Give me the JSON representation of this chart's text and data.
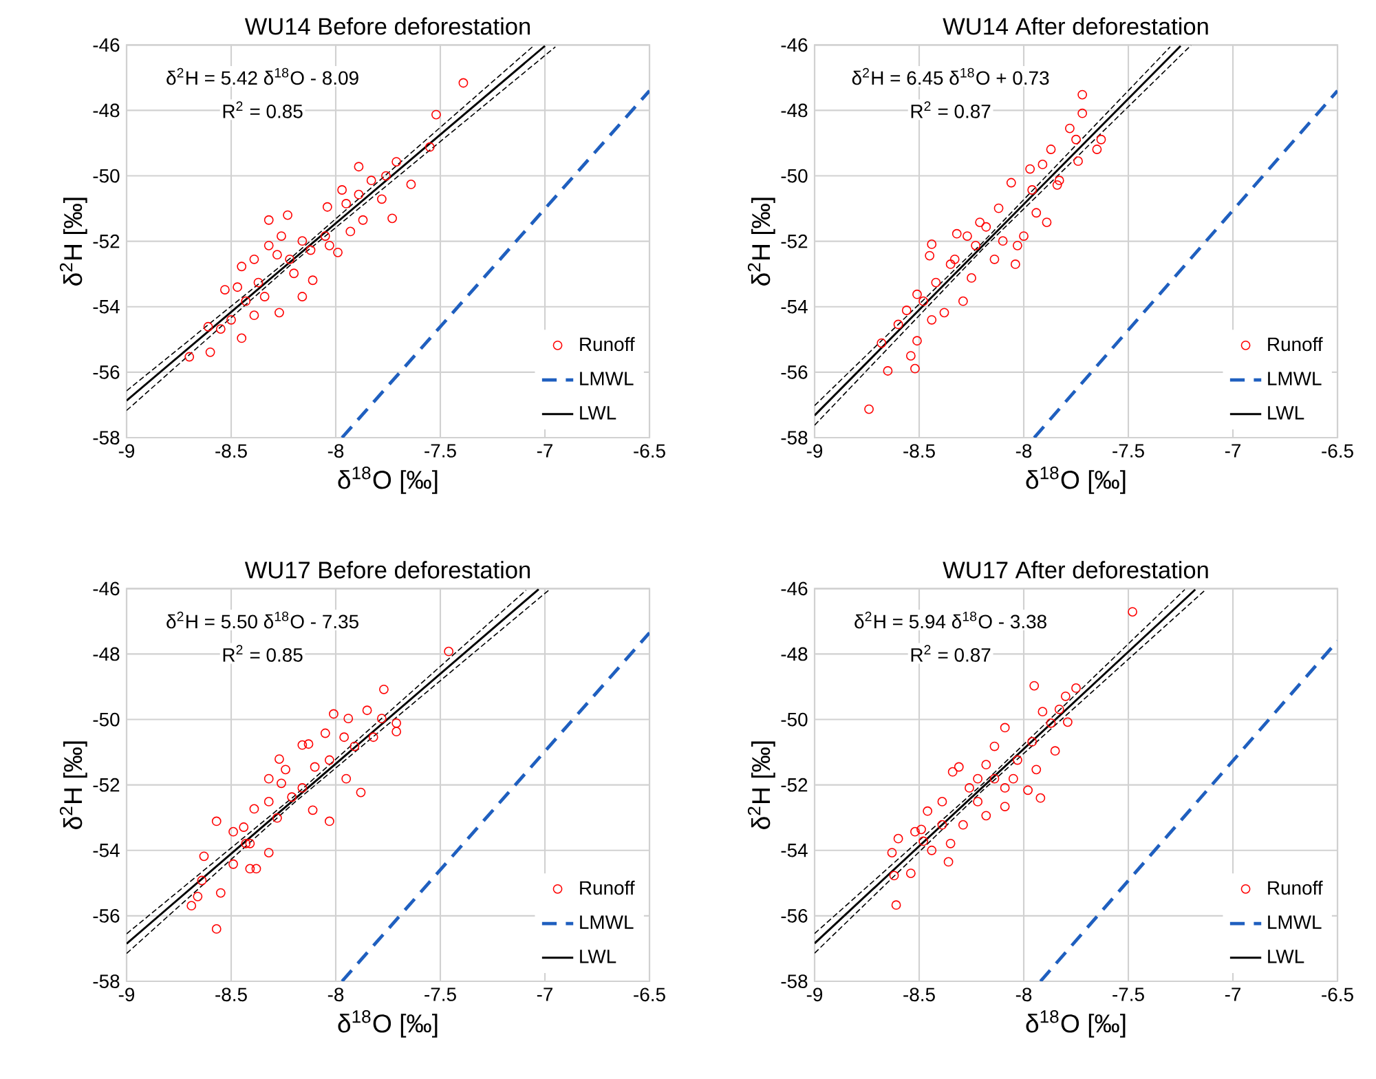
{
  "chart_data": [
    {
      "type": "scatter",
      "title": "WU14 Before deforestation",
      "xlabel": "δ$^{18}$O [‰]",
      "ylabel": "δ$^{2}$H [‰]",
      "annotations": [
        "δ$^{2}$H = 5.42 δ$^{18}$O - 8.09",
        "R$^{2}$ = 0.85"
      ],
      "xlim": [
        -9,
        -6.5
      ],
      "ylim": [
        -58,
        -46
      ],
      "xticks": [
        -9,
        -8.5,
        -8,
        -7.5,
        -7,
        -6.5
      ],
      "yticks": [
        -58,
        -56,
        -54,
        -52,
        -50,
        -48,
        -46
      ],
      "grid": true,
      "legend": "bottom right",
      "series": [
        {
          "name": "Runoff",
          "marker": "circle",
          "color": "#ff0000",
          "x": [
            -7.39,
            -7.52,
            -7.55,
            -7.64,
            -7.73,
            -7.71,
            -7.89,
            -7.97,
            -8.04,
            -8.23,
            -8.32,
            -8.32,
            -8.45,
            -8.53,
            -8.61,
            -8.7,
            -8.6,
            -8.45,
            -8.27,
            -8.16,
            -8.11,
            -7.99,
            -7.87,
            -7.78,
            -7.83,
            -7.95,
            -8.12,
            -8.22,
            -8.37,
            -8.43,
            -8.5,
            -8.39,
            -8.2,
            -8.05,
            -7.93,
            -7.76,
            -8.26,
            -8.39,
            -8.34,
            -8.03,
            -8.16,
            -8.47,
            -8.55,
            -7.89,
            -8.28
          ],
          "values": [
            -47.16,
            -48.13,
            -49.12,
            -50.26,
            -51.3,
            -49.57,
            -49.72,
            -50.43,
            -50.95,
            -51.2,
            -51.35,
            -52.13,
            -52.77,
            -53.48,
            -54.61,
            -55.53,
            -55.39,
            -54.96,
            -54.18,
            -53.69,
            -53.19,
            -52.34,
            -51.35,
            -50.71,
            -50.14,
            -50.85,
            -52.27,
            -52.55,
            -53.26,
            -53.83,
            -54.4,
            -54.26,
            -52.98,
            -51.84,
            -51.7,
            -50.0,
            -51.84,
            -52.55,
            -53.69,
            -52.13,
            -51.99,
            -53.4,
            -54.68,
            -50.57,
            -52.41
          ]
        },
        {
          "name": "LMWL",
          "type": "line",
          "line_style": "dashed",
          "color": "#1f5fbf",
          "x": [
            -7.97,
            -6.5
          ],
          "values": [
            -58,
            -47.4
          ]
        },
        {
          "name": "LWL",
          "type": "line",
          "line_style": "solid",
          "color": "#000000",
          "x": [
            -9,
            -7.0
          ],
          "values": [
            -56.87,
            -46.03
          ]
        },
        {
          "type": "line",
          "line_style": "dashed",
          "color": "#000000",
          "x": [
            -9,
            -8.2,
            -7.06
          ],
          "values": [
            -56.57,
            -52.43,
            -46.06
          ]
        },
        {
          "type": "line",
          "line_style": "dashed",
          "color": "#000000",
          "x": [
            -9,
            -8.2,
            -6.95
          ],
          "values": [
            -57.17,
            -52.63,
            -46.06
          ]
        }
      ]
    },
    {
      "type": "scatter",
      "title": "WU14 After deforestation",
      "xlabel": "δ$^{18}$O [‰]",
      "ylabel": "δ$^{2}$H [‰]",
      "annotations": [
        "δ$^{2}$H = 6.45 δ$^{18}$O + 0.73",
        "R$^{2}$ = 0.87"
      ],
      "xlim": [
        -9,
        -6.5
      ],
      "ylim": [
        -58,
        -46
      ],
      "xticks": [
        -9,
        -8.5,
        -8,
        -7.5,
        -7,
        -6.5
      ],
      "yticks": [
        -58,
        -56,
        -54,
        -52,
        -50,
        -48,
        -46
      ],
      "grid": true,
      "legend": "bottom right",
      "series": [
        {
          "name": "Runoff",
          "marker": "circle",
          "color": "#ff0000",
          "x": [
            -7.72,
            -7.72,
            -7.78,
            -7.63,
            -7.65,
            -7.75,
            -7.74,
            -7.87,
            -7.91,
            -7.97,
            -7.84,
            -8.06,
            -7.89,
            -8.04,
            -8.03,
            -8.12,
            -8.21,
            -8.27,
            -8.32,
            -8.44,
            -8.45,
            -8.35,
            -8.29,
            -8.42,
            -8.51,
            -8.56,
            -8.6,
            -8.68,
            -8.65,
            -8.54,
            -8.52,
            -8.51,
            -8.74,
            -8.44,
            -8.38,
            -8.25,
            -8.14,
            -8.0,
            -7.94,
            -8.23,
            -8.1,
            -8.48,
            -8.33,
            -7.96,
            -7.83,
            -8.18
          ],
          "values": [
            -47.52,
            -48.09,
            -48.55,
            -48.89,
            -49.19,
            -48.89,
            -49.55,
            -49.19,
            -49.65,
            -49.79,
            -50.28,
            -50.21,
            -51.42,
            -52.7,
            -52.13,
            -50.99,
            -51.42,
            -51.84,
            -51.77,
            -52.09,
            -52.44,
            -52.7,
            -53.83,
            -53.26,
            -53.62,
            -54.11,
            -54.54,
            -55.11,
            -55.96,
            -55.5,
            -55.89,
            -55.04,
            -57.13,
            -54.4,
            -54.18,
            -53.12,
            -52.55,
            -51.84,
            -51.13,
            -52.13,
            -51.99,
            -53.83,
            -52.55,
            -50.43,
            -50.14,
            -51.56
          ]
        },
        {
          "name": "LMWL",
          "type": "line",
          "line_style": "dashed",
          "color": "#1f5fbf",
          "x": [
            -7.95,
            -6.5
          ],
          "values": [
            -58,
            -47.4
          ]
        },
        {
          "name": "LWL",
          "type": "line",
          "line_style": "solid",
          "color": "#000000",
          "x": [
            -9,
            -7.25
          ],
          "values": [
            -57.32,
            -46.03
          ]
        },
        {
          "type": "line",
          "line_style": "dashed",
          "color": "#000000",
          "x": [
            -9,
            -8.2,
            -7.3
          ],
          "values": [
            -57.02,
            -52.06,
            -46.06
          ]
        },
        {
          "type": "line",
          "line_style": "dashed",
          "color": "#000000",
          "x": [
            -9,
            -8.2,
            -7.2
          ],
          "values": [
            -57.62,
            -52.26,
            -46.01
          ]
        }
      ]
    },
    {
      "type": "scatter",
      "title": "WU17 Before deforestation",
      "xlabel": "δ$^{18}$O [‰]",
      "ylabel": "δ$^{2}$H [‰]",
      "annotations": [
        "δ$^{2}$H = 5.50 δ$^{18}$O - 7.35",
        "R$^{2}$ = 0.85"
      ],
      "xlim": [
        -9,
        -6.5
      ],
      "ylim": [
        -58,
        -46
      ],
      "xticks": [
        -9,
        -8.5,
        -8,
        -7.5,
        -7,
        -6.5
      ],
      "yticks": [
        -58,
        -56,
        -54,
        -52,
        -50,
        -48,
        -46
      ],
      "grid": true,
      "legend": "bottom right",
      "series": [
        {
          "name": "Runoff",
          "marker": "circle",
          "color": "#ff0000",
          "x": [
            -7.46,
            -7.77,
            -7.85,
            -7.71,
            -7.71,
            -8.01,
            -7.94,
            -8.05,
            -8.16,
            -8.27,
            -8.32,
            -8.24,
            -8.1,
            -7.95,
            -7.88,
            -8.03,
            -8.11,
            -8.21,
            -8.32,
            -8.39,
            -8.44,
            -8.49,
            -8.57,
            -8.41,
            -8.38,
            -8.41,
            -8.49,
            -8.63,
            -8.64,
            -8.69,
            -8.66,
            -8.55,
            -8.57,
            -8.32,
            -8.28,
            -8.16,
            -8.03,
            -7.91,
            -7.82,
            -7.78,
            -8.43,
            -8.26,
            -7.96,
            -8.13
          ],
          "values": [
            -47.92,
            -49.08,
            -49.72,
            -50.11,
            -50.37,
            -49.83,
            -49.97,
            -50.42,
            -50.78,
            -51.21,
            -51.81,
            -51.53,
            -51.45,
            -51.81,
            -52.23,
            -53.11,
            -52.77,
            -52.37,
            -52.51,
            -52.73,
            -53.29,
            -53.43,
            -53.11,
            -53.79,
            -54.56,
            -54.56,
            -54.42,
            -54.18,
            -54.92,
            -55.69,
            -55.41,
            -55.3,
            -56.4,
            -54.07,
            -53.01,
            -52.09,
            -51.24,
            -50.82,
            -50.54,
            -49.97,
            -53.79,
            -51.95,
            -50.54,
            -50.75
          ]
        },
        {
          "name": "LMWL",
          "type": "line",
          "line_style": "dashed",
          "color": "#1f5fbf",
          "x": [
            -7.97,
            -6.5
          ],
          "values": [
            -58,
            -47.35
          ]
        },
        {
          "name": "LWL",
          "type": "line",
          "line_style": "solid",
          "color": "#000000",
          "x": [
            -9,
            -7.03
          ],
          "values": [
            -56.85,
            -46.02
          ]
        },
        {
          "type": "line",
          "line_style": "dashed",
          "color": "#000000",
          "x": [
            -9,
            -8.2,
            -7.09
          ],
          "values": [
            -56.55,
            -52.35,
            -46.05
          ]
        },
        {
          "type": "line",
          "line_style": "dashed",
          "color": "#000000",
          "x": [
            -9,
            -8.2,
            -6.98
          ],
          "values": [
            -57.15,
            -52.55,
            -46.04
          ]
        }
      ]
    },
    {
      "type": "scatter",
      "title": "WU17 After deforestation",
      "xlabel": "δ$^{18}$O [‰]",
      "ylabel": "δ$^{2}$H [‰]",
      "annotations": [
        "δ$^{2}$H = 5.94 δ$^{18}$O - 3.38",
        "R$^{2}$ = 0.87"
      ],
      "xlim": [
        -9,
        -6.5
      ],
      "ylim": [
        -58,
        -46
      ],
      "xticks": [
        -9,
        -8.5,
        -8,
        -7.5,
        -7,
        -6.5
      ],
      "yticks": [
        -58,
        -56,
        -54,
        -52,
        -50,
        -48,
        -46
      ],
      "grid": true,
      "legend": "bottom right",
      "series": [
        {
          "name": "Runoff",
          "marker": "circle",
          "color": "#ff0000",
          "x": [
            -7.48,
            -7.95,
            -7.75,
            -7.8,
            -7.79,
            -7.91,
            -7.85,
            -7.94,
            -7.98,
            -7.92,
            -8.09,
            -8.14,
            -8.18,
            -8.34,
            -8.31,
            -8.09,
            -8.18,
            -8.29,
            -8.39,
            -8.46,
            -8.49,
            -8.52,
            -8.6,
            -8.63,
            -8.62,
            -8.54,
            -8.61,
            -8.36,
            -8.44,
            -8.35,
            -8.22,
            -8.05,
            -7.96,
            -7.87,
            -8.03,
            -8.14,
            -8.26,
            -8.39,
            -8.48,
            -8.09,
            -8.22,
            -7.83
          ],
          "values": [
            -46.71,
            -48.97,
            -49.04,
            -49.29,
            -50.08,
            -49.76,
            -50.96,
            -51.53,
            -52.16,
            -52.4,
            -50.25,
            -50.82,
            -51.38,
            -51.6,
            -51.45,
            -52.66,
            -52.94,
            -53.22,
            -52.51,
            -52.8,
            -53.36,
            -53.43,
            -53.64,
            -54.07,
            -54.77,
            -54.7,
            -55.67,
            -54.35,
            -54.0,
            -53.79,
            -52.51,
            -51.81,
            -50.68,
            -50.11,
            -51.24,
            -51.81,
            -52.09,
            -53.22,
            -53.72,
            -52.09,
            -51.81,
            -49.69
          ]
        },
        {
          "name": "LMWL",
          "type": "line",
          "line_style": "dashed",
          "color": "#1f5fbf",
          "x": [
            -7.92,
            -6.5
          ],
          "values": [
            -58,
            -47.6
          ]
        },
        {
          "name": "LWL",
          "type": "line",
          "line_style": "solid",
          "color": "#000000",
          "x": [
            -9,
            -7.18
          ],
          "values": [
            -56.84,
            -46.03
          ]
        },
        {
          "type": "line",
          "line_style": "dashed",
          "color": "#000000",
          "x": [
            -9,
            -8.2,
            -7.23
          ],
          "values": [
            -56.54,
            -51.99,
            -46.03
          ]
        },
        {
          "type": "line",
          "line_style": "dashed",
          "color": "#000000",
          "x": [
            -9,
            -8.2,
            -7.13
          ],
          "values": [
            -57.14,
            -52.19,
            -46.03
          ]
        }
      ]
    }
  ]
}
